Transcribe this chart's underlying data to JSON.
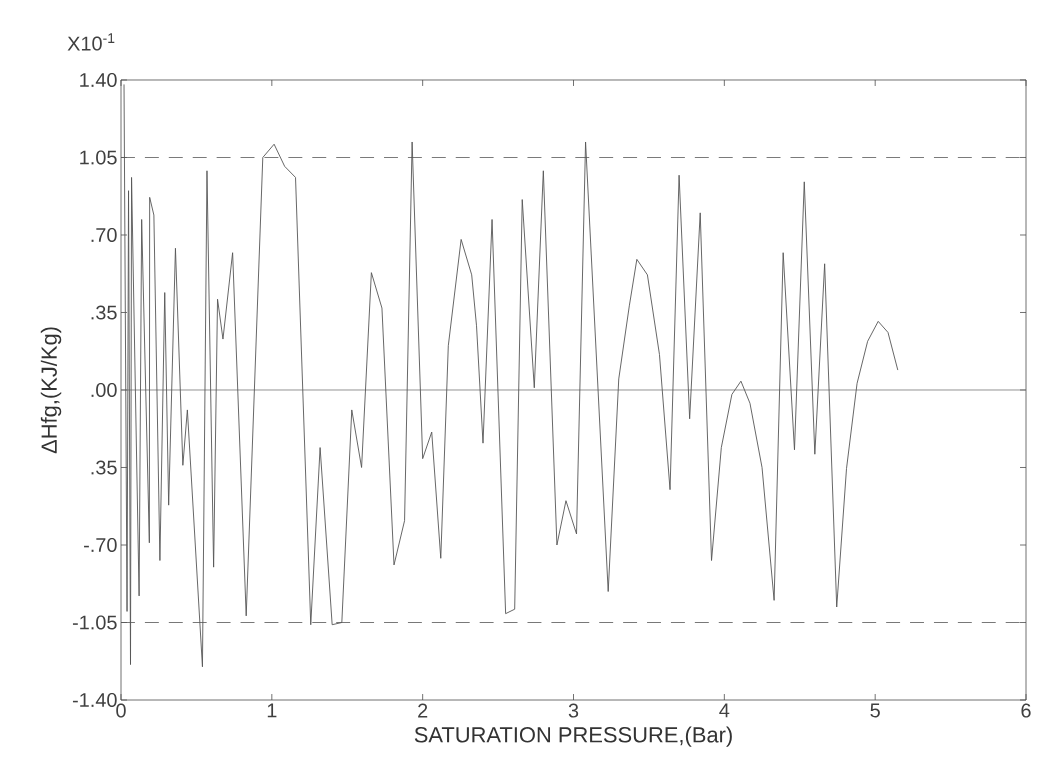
{
  "chart_data": {
    "type": "line",
    "xlabel": "SATURATION PRESSURE,(Bar)",
    "ylabel": "ΔHfg,(KJ/Kg)",
    "annotations": [
      "X10$^{-1}$"
    ],
    "xlim": [
      0,
      6
    ],
    "ylim": [
      -1.4,
      1.4
    ],
    "xticks": [
      0,
      1,
      2,
      3,
      4,
      5,
      6
    ],
    "yticks": [
      {
        "value": -1.4,
        "label": "-1.40"
      },
      {
        "value": -1.05,
        "label": "-1.05"
      },
      {
        "value": -0.7,
        "label": "-.70"
      },
      {
        "value": -0.35,
        "label": ".35"
      },
      {
        "value": 0,
        "label": ".00"
      },
      {
        "value": 0.35,
        "label": ".35"
      },
      {
        "value": 0.7,
        "label": ".70"
      },
      {
        "value": 1.05,
        "label": "1.05"
      },
      {
        "value": 1.4,
        "label": "1.40"
      }
    ],
    "grid": false,
    "marker": "none",
    "line_style": "solid",
    "ref_lines": [
      {
        "axis": "y",
        "value": 1.05,
        "line_style": "dashed",
        "color": "#555555"
      },
      {
        "axis": "y",
        "value": 0,
        "line_style": "solid",
        "color": "#777777"
      },
      {
        "axis": "y",
        "value": -1.05,
        "line_style": "dashed",
        "color": "#555555"
      }
    ],
    "series": [
      {
        "color": "#555555",
        "x": [
          0.02,
          0.04,
          0.05,
          0.063,
          0.07,
          0.12,
          0.137,
          0.188,
          0.19,
          0.218,
          0.258,
          0.29,
          0.316,
          0.361,
          0.41,
          0.44,
          0.54,
          0.57,
          0.614,
          0.64,
          0.676,
          0.74,
          0.83,
          0.94,
          1.015,
          1.085,
          1.157,
          1.258,
          1.32,
          1.4,
          1.464,
          1.53,
          1.595,
          1.66,
          1.73,
          1.81,
          1.88,
          1.93,
          2.0,
          2.06,
          2.12,
          2.17,
          2.255,
          2.325,
          2.357,
          2.4,
          2.46,
          2.55,
          2.61,
          2.66,
          2.74,
          2.8,
          2.89,
          2.95,
          3.02,
          3.08,
          3.23,
          3.3,
          3.37,
          3.42,
          3.49,
          3.57,
          3.64,
          3.7,
          3.77,
          3.84,
          3.915,
          3.98,
          4.05,
          4.11,
          4.17,
          4.25,
          4.33,
          4.39,
          4.465,
          4.53,
          4.6,
          4.665,
          4.745,
          4.81,
          4.88,
          4.95,
          5.02,
          5.085,
          5.15
        ],
        "values": [
          1.38,
          -1.0,
          0.9,
          -1.24,
          0.96,
          -0.93,
          0.77,
          -0.69,
          0.87,
          0.79,
          -0.77,
          0.44,
          -0.52,
          0.64,
          -0.34,
          -0.09,
          -1.25,
          0.99,
          -0.8,
          0.41,
          0.23,
          0.62,
          -1.02,
          1.05,
          1.11,
          1.01,
          0.96,
          -1.06,
          -0.26,
          -1.06,
          -1.05,
          -0.09,
          -0.35,
          0.53,
          0.37,
          -0.79,
          -0.59,
          1.12,
          -0.31,
          -0.19,
          -0.76,
          0.2,
          0.68,
          0.52,
          0.29,
          -0.24,
          0.77,
          -1.01,
          -0.99,
          0.86,
          0.01,
          0.99,
          -0.7,
          -0.5,
          -0.65,
          1.12,
          -0.91,
          0.05,
          0.38,
          0.59,
          0.52,
          0.16,
          -0.45,
          0.97,
          -0.13,
          0.8,
          -0.77,
          -0.26,
          -0.02,
          0.04,
          -0.06,
          -0.35,
          -0.95,
          0.62,
          -0.27,
          0.94,
          -0.29,
          0.57,
          -0.98,
          -0.355,
          0.03,
          0.22,
          0.31,
          0.26,
          0.09
        ]
      }
    ]
  }
}
